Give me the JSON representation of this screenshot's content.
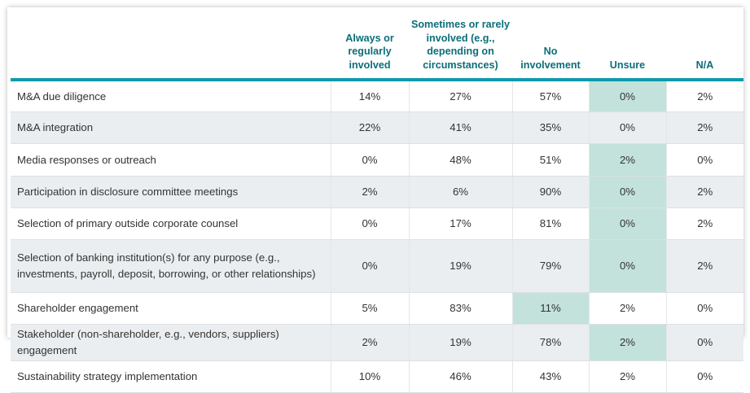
{
  "table": {
    "columns": [
      "",
      "Always or regularly involved",
      "Sometimes or rarely involved (e.g., depending on circumstances)",
      "No involvement",
      "Unsure",
      "N/A"
    ],
    "highlight_color": "#c3e2db",
    "header_color": "#0b6e78",
    "accent_bar_color": "#0e9aab",
    "rows": [
      {
        "label": "M&A due diligence",
        "values": [
          "14%",
          "27%",
          "57%",
          "0%",
          "2%"
        ],
        "highlight": 3
      },
      {
        "label": "M&A integration",
        "values": [
          "22%",
          "41%",
          "35%",
          "0%",
          "2%"
        ],
        "highlight": null
      },
      {
        "label": "Media responses or outreach",
        "values": [
          "0%",
          "48%",
          "51%",
          "2%",
          "0%"
        ],
        "highlight": 3
      },
      {
        "label": "Participation in disclosure committee meetings",
        "values": [
          "2%",
          "6%",
          "90%",
          "0%",
          "2%"
        ],
        "highlight": 3
      },
      {
        "label": "Selection of primary outside corporate counsel",
        "values": [
          "0%",
          "17%",
          "81%",
          "0%",
          "2%"
        ],
        "highlight": 3
      },
      {
        "label": "Selection of banking institution(s) for any purpose (e.g., investments, payroll, deposit, borrowing, or other relationships)",
        "values": [
          "0%",
          "19%",
          "79%",
          "0%",
          "2%"
        ],
        "highlight": 3
      },
      {
        "label": "Shareholder engagement",
        "values": [
          "5%",
          "83%",
          "11%",
          "2%",
          "0%"
        ],
        "highlight": 2
      },
      {
        "label": "Stakeholder (non-shareholder, e.g., vendors, suppliers) engagement",
        "values": [
          "2%",
          "19%",
          "78%",
          "2%",
          "0%"
        ],
        "highlight": 3
      },
      {
        "label": "Sustainability strategy implementation",
        "values": [
          "10%",
          "46%",
          "43%",
          "2%",
          "0%"
        ],
        "highlight": null
      }
    ]
  }
}
